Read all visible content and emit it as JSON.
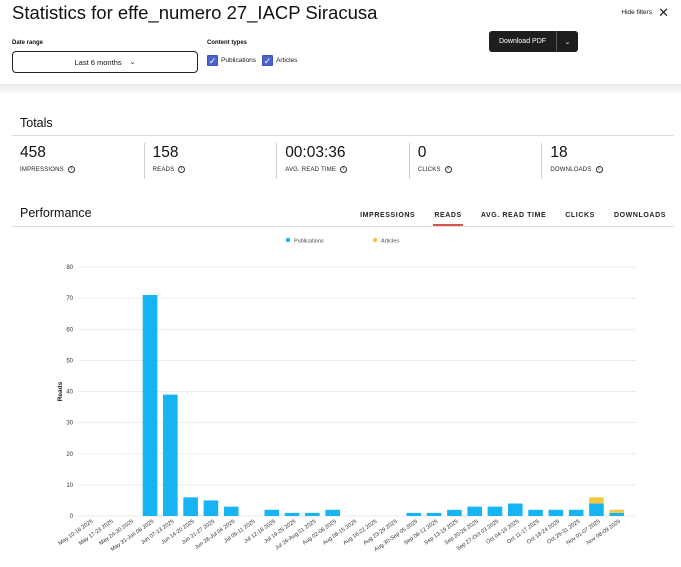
{
  "header": {
    "title": "Statistics for effe_numero 27_IACP Siracusa",
    "hide_filters": "Hide filters",
    "download_pdf": "Download PDF"
  },
  "filters": {
    "date_range_label": "Date range",
    "date_range_value": "Last 6 months",
    "content_types_label": "Content types",
    "publications": "Publications",
    "articles": "Articles"
  },
  "totals": {
    "title": "Totals",
    "items": [
      {
        "value": "458",
        "label": "IMPRESSIONS"
      },
      {
        "value": "158",
        "label": "READS"
      },
      {
        "value": "00:03:36",
        "label": "AVG. READ TIME"
      },
      {
        "value": "0",
        "label": "CLICKS"
      },
      {
        "value": "18",
        "label": "DOWNLOADS"
      }
    ]
  },
  "performance": {
    "title": "Performance",
    "tabs": [
      "IMPRESSIONS",
      "READS",
      "AVG. READ TIME",
      "CLICKS",
      "DOWNLOADS"
    ],
    "active_tab": "READS"
  },
  "colors": {
    "publications": "#16b4f2",
    "articles": "#f5c842",
    "active_tab": "#d9534f"
  },
  "chart_data": {
    "type": "bar",
    "stacked": true,
    "ylabel": "Reads",
    "ylim": [
      0,
      80
    ],
    "yticks": [
      0,
      10,
      20,
      30,
      40,
      50,
      60,
      70,
      80
    ],
    "legend": [
      "Publications",
      "Articles"
    ],
    "legend_position": "top-center",
    "grid": true,
    "categories": [
      "May 10-16 2025",
      "May 17-23 2025",
      "May 24-30 2025",
      "May 31-Jun 06 2025",
      "Jun 07-13 2025",
      "Jun 14-20 2025",
      "Jun 21-27 2025",
      "Jun 28-Jul 04 2025",
      "Jul 05-11 2025",
      "Jul 12-18 2025",
      "Jul 19-25 2025",
      "Jul 26-Aug 01 2025",
      "Aug 02-08 2025",
      "Aug 09-15 2025",
      "Aug 16-22 2025",
      "Aug 23-29 2025",
      "Aug 30-Sep 05 2025",
      "Sep 06-12 2025",
      "Sep 13-19 2025",
      "Sep 20-26 2025",
      "Sep 27-Oct 03 2025",
      "Oct 04-10 2025",
      "Oct 11-17 2025",
      "Oct 18-24 2025",
      "Oct 25-31 2025",
      "Nov 01-07 2025",
      "Nov 08-09 2025"
    ],
    "series": [
      {
        "name": "Publications",
        "values": [
          0,
          0,
          0,
          71,
          39,
          6,
          5,
          3,
          0,
          2,
          1,
          1,
          2,
          0,
          0,
          0,
          1,
          1,
          2,
          3,
          3,
          4,
          2,
          2,
          2,
          4,
          1
        ]
      },
      {
        "name": "Articles",
        "values": [
          0,
          0,
          0,
          0,
          0,
          0,
          0,
          0,
          0,
          0,
          0,
          0,
          0,
          0,
          0,
          0,
          0,
          0,
          0,
          0,
          0,
          0,
          0,
          0,
          0,
          2,
          1
        ]
      }
    ]
  }
}
